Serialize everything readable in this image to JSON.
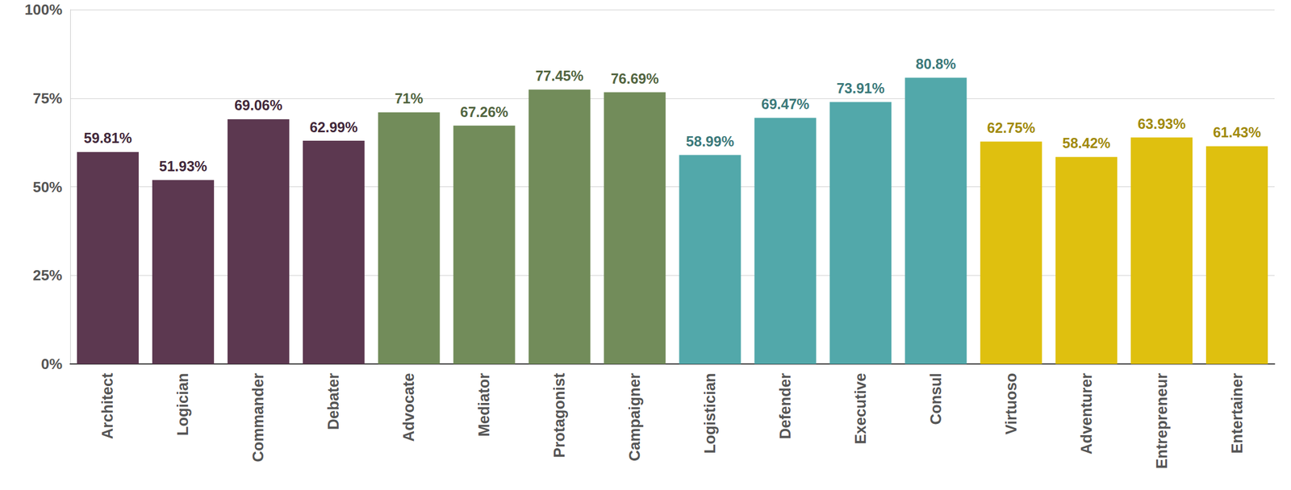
{
  "chart_data": {
    "type": "bar",
    "categories": [
      "Architect",
      "Logician",
      "Commander",
      "Debater",
      "Advocate",
      "Mediator",
      "Protagonist",
      "Campaigner",
      "Logistician",
      "Defender",
      "Executive",
      "Consul",
      "Virtuoso",
      "Adventurer",
      "Entrepreneur",
      "Entertainer"
    ],
    "values": [
      59.81,
      51.93,
      69.06,
      62.99,
      71,
      67.26,
      77.45,
      76.69,
      58.99,
      69.47,
      73.91,
      80.8,
      62.75,
      58.42,
      63.93,
      61.43
    ],
    "value_labels": [
      "59.81%",
      "51.93%",
      "69.06%",
      "62.99%",
      "71%",
      "67.26%",
      "77.45%",
      "76.69%",
      "58.99%",
      "69.47%",
      "73.91%",
      "80.8%",
      "62.75%",
      "58.42%",
      "63.93%",
      "61.43%"
    ],
    "colors": [
      "#5c3850",
      "#5c3850",
      "#5c3850",
      "#5c3850",
      "#728c5a",
      "#728c5a",
      "#728c5a",
      "#728c5a",
      "#52a8aa",
      "#52a8aa",
      "#52a8aa",
      "#52a8aa",
      "#dfc00f",
      "#dfc00f",
      "#dfc00f",
      "#dfc00f"
    ],
    "ylim": [
      0,
      100
    ],
    "yticks": [
      {
        "value": 0,
        "label": "0%"
      },
      {
        "value": 25,
        "label": "25%"
      },
      {
        "value": 50,
        "label": "50%"
      },
      {
        "value": 75,
        "label": "75%"
      },
      {
        "value": 100,
        "label": "100%"
      }
    ],
    "grid": true,
    "data_labels": true
  }
}
